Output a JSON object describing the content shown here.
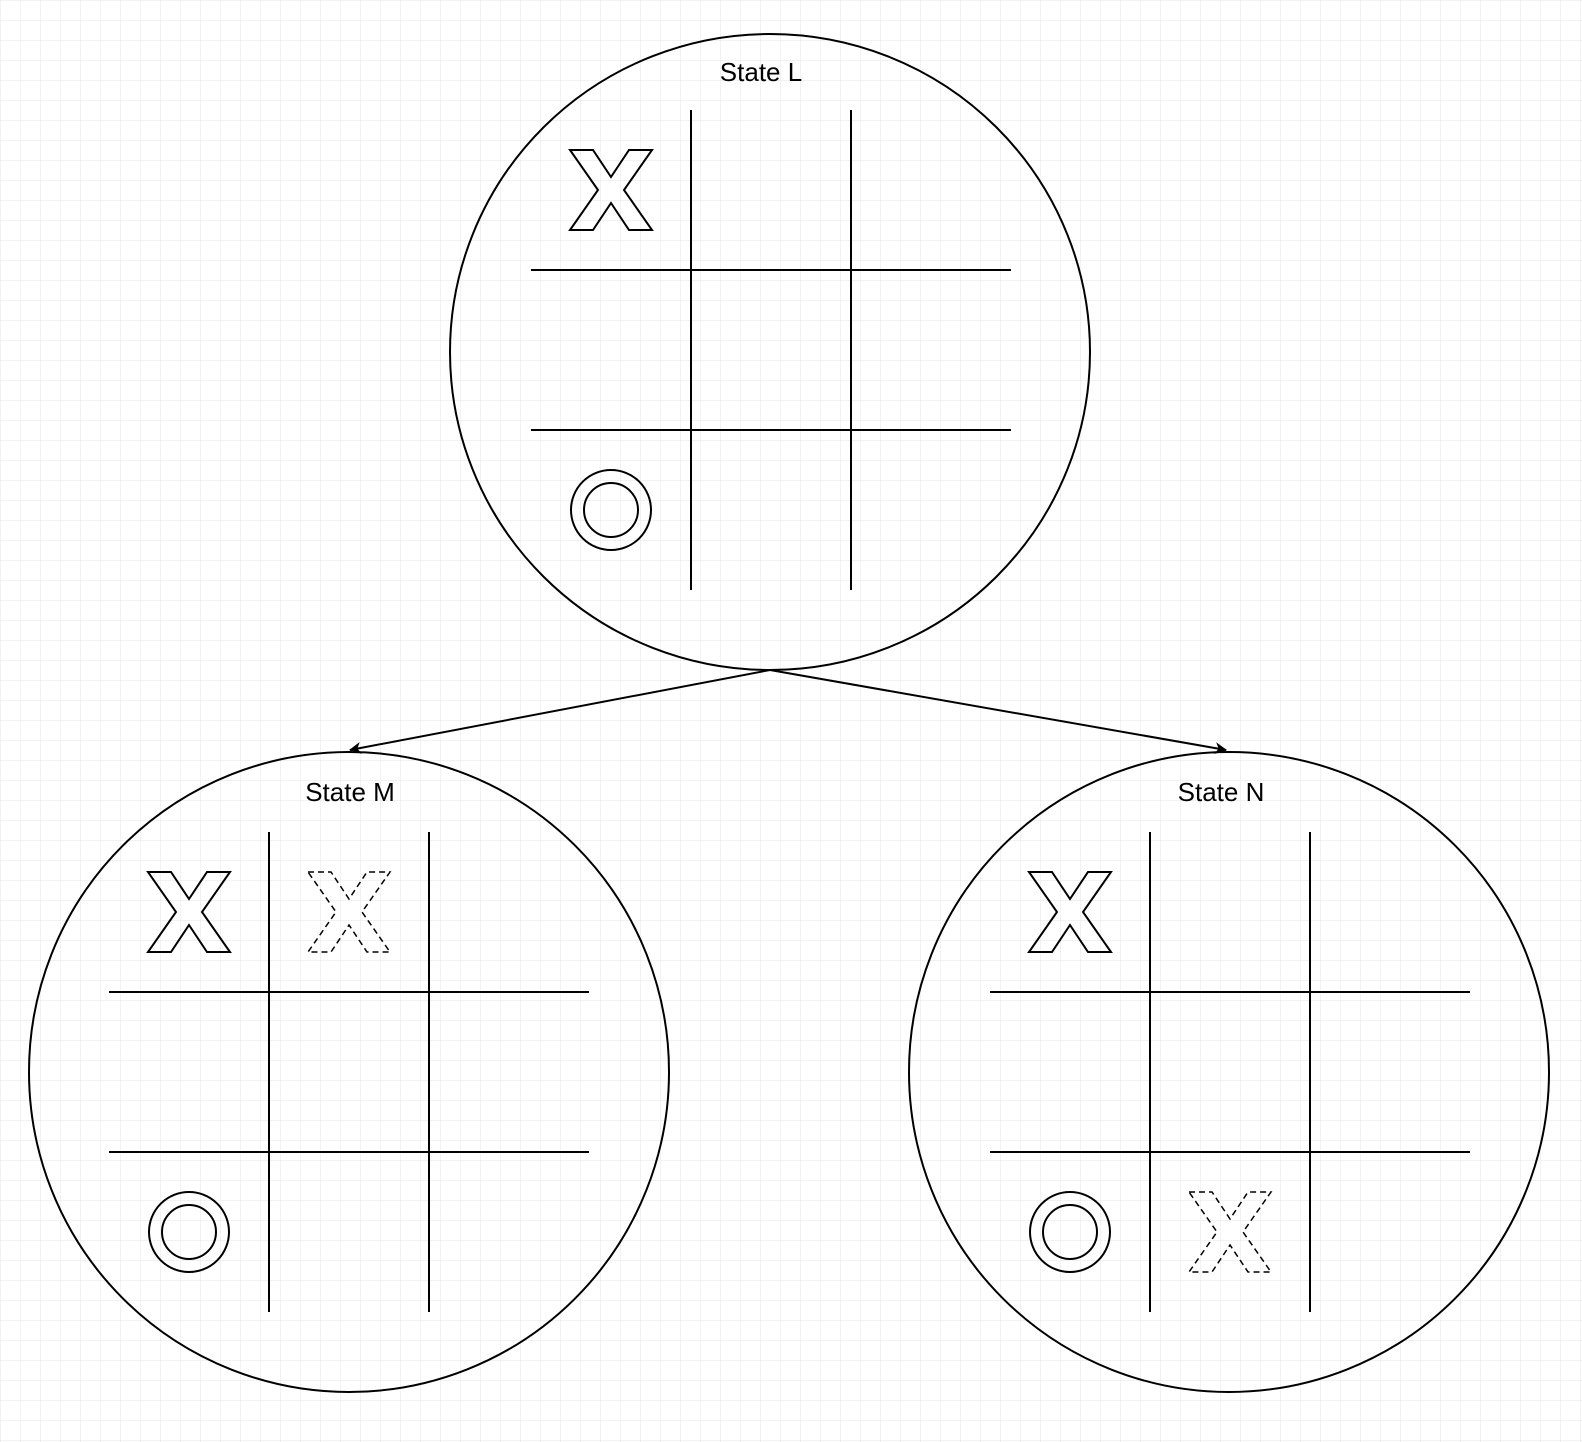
{
  "diagram": {
    "type": "game-tree",
    "colors": {
      "background": "#ffffff",
      "grid": "#e3e3e3",
      "stroke": "#000000"
    },
    "nodes": [
      {
        "id": "L",
        "label": "State L",
        "board": [
          [
            "X",
            "",
            ""
          ],
          [
            "",
            "",
            ""
          ],
          [
            "O",
            "",
            ""
          ]
        ],
        "new_move": null
      },
      {
        "id": "M",
        "label": "State M",
        "board": [
          [
            "X",
            "X",
            ""
          ],
          [
            "",
            "",
            ""
          ],
          [
            "O",
            "",
            ""
          ]
        ],
        "new_move": {
          "row": 0,
          "col": 1,
          "mark": "X",
          "style": "dashed"
        }
      },
      {
        "id": "N",
        "label": "State N",
        "board": [
          [
            "X",
            "",
            ""
          ],
          [
            "",
            "",
            ""
          ],
          [
            "O",
            "X",
            ""
          ]
        ],
        "new_move": {
          "row": 2,
          "col": 1,
          "mark": "X",
          "style": "dashed"
        }
      }
    ],
    "edges": [
      {
        "from": "L",
        "to": "M"
      },
      {
        "from": "L",
        "to": "N"
      }
    ]
  }
}
